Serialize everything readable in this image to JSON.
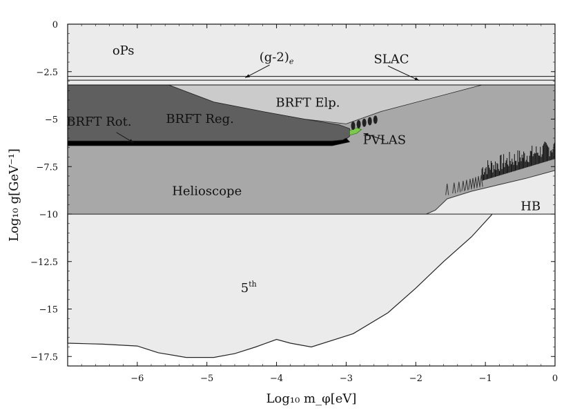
{
  "chart_data": {
    "type": "area",
    "xlabel": "Log₁₀ m_φ[eV]",
    "ylabel": "Log₁₀ g[GeV⁻¹]",
    "xlim": [
      -7,
      0
    ],
    "ylim": [
      -18,
      0
    ],
    "x_ticks": [
      -6,
      -5,
      -4,
      -3,
      -2,
      -1,
      0
    ],
    "x_tick_labels": [
      "−6",
      "−5",
      "−4",
      "−3",
      "−2",
      "−1",
      "0"
    ],
    "y_ticks": [
      0,
      -2.5,
      -5,
      -7.5,
      -10,
      -12.5,
      -15,
      -17.5
    ],
    "y_tick_labels": [
      "0",
      "−2.5",
      "−5",
      "−7.5",
      "−10",
      "−12.5",
      "−15",
      "−17.5"
    ],
    "colors": {
      "light": "#ebebeb",
      "lightmid": "#cbcbcb",
      "mid": "#a8a8a8",
      "dark": "#5f5f5f",
      "black": "#000000",
      "green": "#7ec850"
    },
    "regions": [
      {
        "name": "5th",
        "label": "5th",
        "color": "light",
        "points": [
          [
            -7,
            -10
          ],
          [
            0,
            -10
          ],
          [
            -0.9,
            -10
          ],
          [
            -1.2,
            -11.2
          ],
          [
            -1.6,
            -12.5
          ],
          [
            -2.0,
            -13.9
          ],
          [
            -2.4,
            -15.2
          ],
          [
            -2.9,
            -16.3
          ],
          [
            -3.5,
            -17.0
          ],
          [
            -3.8,
            -16.8
          ],
          [
            -4.0,
            -16.6
          ],
          [
            -4.3,
            -17.0
          ],
          [
            -4.6,
            -17.35
          ],
          [
            -4.9,
            -17.55
          ],
          [
            -5.3,
            -17.55
          ],
          [
            -5.7,
            -17.3
          ],
          [
            -6.0,
            -16.95
          ],
          [
            -6.5,
            -16.85
          ],
          [
            -7,
            -16.8
          ]
        ]
      },
      {
        "name": "oPs",
        "label": "oPs",
        "color": "light",
        "points": [
          [
            -7,
            0
          ],
          [
            0,
            0
          ],
          [
            0,
            -3.2
          ],
          [
            -7,
            -3.2
          ]
        ]
      },
      {
        "name": "Helioscope",
        "label": "Helioscope",
        "color": "mid",
        "points": [
          [
            -7,
            -3.2
          ],
          [
            0,
            -3.2
          ],
          [
            0,
            -10
          ],
          [
            -7,
            -10
          ]
        ]
      },
      {
        "name": "BRFT Elp.",
        "label": "BRFT Elp.",
        "color": "lightmid",
        "points": [
          [
            -5.55,
            -3.2
          ],
          [
            -1.05,
            -3.2
          ],
          [
            -2.5,
            -4.6
          ],
          [
            -3.0,
            -5.25
          ],
          [
            -3.6,
            -5.0
          ],
          [
            -4.2,
            -4.6
          ],
          [
            -4.9,
            -4.1
          ]
        ]
      },
      {
        "name": "BRFT Reg.",
        "label": "BRFT Reg.",
        "color": "dark",
        "points": [
          [
            -7,
            -3.2
          ],
          [
            -5.55,
            -3.2
          ],
          [
            -4.9,
            -4.1
          ],
          [
            -4.2,
            -4.6
          ],
          [
            -3.6,
            -5.0
          ],
          [
            -3.1,
            -5.3
          ],
          [
            -2.95,
            -5.5
          ],
          [
            -2.95,
            -5.9
          ],
          [
            -3.05,
            -6.2
          ],
          [
            -3.25,
            -6.3
          ],
          [
            -7,
            -6.3
          ]
        ]
      },
      {
        "name": "BRFT Rot.",
        "label": "BRFT Rot.",
        "color": "black",
        "points": [
          [
            -7,
            -6.15
          ],
          [
            -3.2,
            -6.15
          ],
          [
            -3.05,
            -6.1
          ],
          [
            -3.0,
            -6.0
          ],
          [
            -2.95,
            -6.2
          ],
          [
            -3.2,
            -6.4
          ],
          [
            -7,
            -6.4
          ]
        ]
      },
      {
        "name": "PVLAS",
        "label": "PVLAS",
        "color": "green",
        "points": [
          [
            -2.95,
            -5.6
          ],
          [
            -2.85,
            -5.45
          ],
          [
            -2.78,
            -5.55
          ],
          [
            -2.85,
            -5.75
          ],
          [
            -2.95,
            -5.85
          ]
        ]
      }
    ],
    "hb_curve": {
      "label": "HB",
      "envelope_start": [
        [
          -1.85,
          -10
        ],
        [
          -1.72,
          -9.8
        ],
        [
          -1.62,
          -9.45
        ],
        [
          -1.55,
          -9.2
        ]
      ],
      "envelope_points": [
        [
          -1.55,
          -9.2
        ],
        [
          -1.2,
          -8.8
        ],
        [
          -0.8,
          -8.45
        ],
        [
          -0.4,
          -8.1
        ],
        [
          0,
          -7.7
        ]
      ],
      "spikes_x": [
        -1.55,
        -1.45,
        -1.38,
        -1.32,
        -1.27,
        -1.22,
        -1.18,
        -1.14,
        -1.1,
        -1.06
      ],
      "spike_top": -8.4
    },
    "lines": [
      {
        "name": "(g-2)e",
        "label": "(g-2)ₑ",
        "y": -2.75
      },
      {
        "name": "SLAC",
        "label": "SLAC",
        "y": -2.95
      },
      {
        "name": "upper-boundary",
        "y": -3.2
      }
    ],
    "annotations": [
      {
        "name": "oPs",
        "text": "oPs"
      },
      {
        "name": "g-2",
        "text": "(g-2)",
        "sub": "e"
      },
      {
        "name": "SLAC",
        "text": "SLAC"
      },
      {
        "name": "BRFT Elp.",
        "text": "BRFT Elp."
      },
      {
        "name": "BRFT Rot.",
        "text": "BRFT Rot."
      },
      {
        "name": "BRFT Reg.",
        "text": "BRFT Reg."
      },
      {
        "name": "PVLAS",
        "text": "PVLAS"
      },
      {
        "name": "Helioscope",
        "text": "Helioscope"
      },
      {
        "name": "HB",
        "text": "HB"
      },
      {
        "name": "5th",
        "text": "5",
        "sup": "th"
      }
    ]
  }
}
